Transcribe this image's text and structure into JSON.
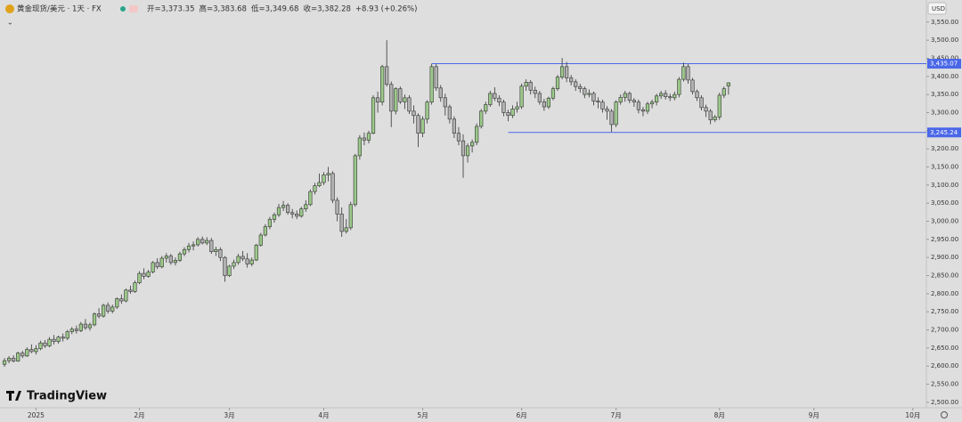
{
  "chart_data": {
    "type": "candlestick",
    "symbol": "黄金现货/美元 · 1天 · FX",
    "header_values": [
      "开=3,373.35",
      "高=3,383.68",
      "低=3,349.68",
      "收=3,382.28",
      "+8.93 (+0.26%)"
    ],
    "currency": "USD",
    "brand": "TradingView",
    "up_color": "#9cc98a",
    "down_color": "#b2b2b2",
    "line_color": "#4a67e8",
    "xlim": [
      -1,
      205
    ],
    "xticks": [
      {
        "value": 7,
        "label": "2025"
      },
      {
        "value": 30,
        "label": "2月"
      },
      {
        "value": 50,
        "label": "3月"
      },
      {
        "value": 71,
        "label": "4月"
      },
      {
        "value": 93,
        "label": "5月"
      },
      {
        "value": 115,
        "label": "6月"
      },
      {
        "value": 136,
        "label": "7月"
      },
      {
        "value": 159,
        "label": "8月"
      },
      {
        "value": 180,
        "label": "9月"
      },
      {
        "value": 202,
        "label": "10月"
      }
    ],
    "ylim": [
      2485,
      3611
    ],
    "yticks": [
      {
        "value": 3550,
        "label": "3,550.00"
      },
      {
        "value": 3500,
        "label": "3,500.00"
      },
      {
        "value": 3450,
        "label": "3,450.00"
      },
      {
        "value": 3400,
        "label": "3,400.00"
      },
      {
        "value": 3350,
        "label": "3,350.00"
      },
      {
        "value": 3300,
        "label": "3,300.00"
      },
      {
        "value": 3250,
        "label": "3,250.00"
      },
      {
        "value": 3200,
        "label": "3,200.00"
      },
      {
        "value": 3150,
        "label": "3,150.00"
      },
      {
        "value": 3100,
        "label": "3,100.00"
      },
      {
        "value": 3050,
        "label": "3,050.00"
      },
      {
        "value": 3000,
        "label": "3,000.00"
      },
      {
        "value": 2950,
        "label": "2,950.00"
      },
      {
        "value": 2900,
        "label": "2,900.00"
      },
      {
        "value": 2850,
        "label": "2,850.00"
      },
      {
        "value": 2800,
        "label": "2,800.00"
      },
      {
        "value": 2750,
        "label": "2,750.00"
      },
      {
        "value": 2700,
        "label": "2,700.00"
      },
      {
        "value": 2650,
        "label": "2,650.00"
      },
      {
        "value": 2600,
        "label": "2,600.00"
      },
      {
        "value": 2550,
        "label": "2,550.00"
      },
      {
        "value": 2500,
        "label": "2,500.00"
      }
    ],
    "hlines": [
      {
        "value": 3435.07,
        "label": "3,435.07"
      },
      {
        "value": 3245.24,
        "label": "3,245.24"
      }
    ],
    "candles": [
      [
        2605,
        2622,
        2598,
        2615
      ],
      [
        2615,
        2628,
        2608,
        2622
      ],
      [
        2622,
        2630,
        2610,
        2614
      ],
      [
        2614,
        2640,
        2612,
        2636
      ],
      [
        2636,
        2642,
        2622,
        2628
      ],
      [
        2628,
        2652,
        2625,
        2646
      ],
      [
        2646,
        2660,
        2636,
        2640
      ],
      [
        2640,
        2658,
        2632,
        2648
      ],
      [
        2648,
        2670,
        2644,
        2664
      ],
      [
        2664,
        2672,
        2650,
        2656
      ],
      [
        2656,
        2680,
        2652,
        2674
      ],
      [
        2674,
        2686,
        2660,
        2668
      ],
      [
        2668,
        2684,
        2662,
        2680
      ],
      [
        2680,
        2690,
        2668,
        2677
      ],
      [
        2677,
        2700,
        2672,
        2695
      ],
      [
        2695,
        2708,
        2688,
        2702
      ],
      [
        2702,
        2712,
        2690,
        2698
      ],
      [
        2698,
        2722,
        2694,
        2716
      ],
      [
        2716,
        2730,
        2700,
        2706
      ],
      [
        2706,
        2720,
        2698,
        2714
      ],
      [
        2714,
        2748,
        2710,
        2744
      ],
      [
        2744,
        2760,
        2732,
        2738
      ],
      [
        2738,
        2772,
        2734,
        2768
      ],
      [
        2768,
        2776,
        2745,
        2752
      ],
      [
        2752,
        2770,
        2746,
        2763
      ],
      [
        2763,
        2790,
        2758,
        2786
      ],
      [
        2786,
        2798,
        2772,
        2780
      ],
      [
        2780,
        2814,
        2776,
        2810
      ],
      [
        2810,
        2822,
        2800,
        2806
      ],
      [
        2806,
        2836,
        2802,
        2830
      ],
      [
        2830,
        2862,
        2826,
        2856
      ],
      [
        2856,
        2870,
        2840,
        2848
      ],
      [
        2848,
        2866,
        2844,
        2860
      ],
      [
        2860,
        2890,
        2856,
        2886
      ],
      [
        2886,
        2898,
        2868,
        2874
      ],
      [
        2874,
        2904,
        2870,
        2898
      ],
      [
        2898,
        2912,
        2886,
        2904
      ],
      [
        2904,
        2910,
        2880,
        2886
      ],
      [
        2886,
        2900,
        2878,
        2892
      ],
      [
        2892,
        2916,
        2888,
        2910
      ],
      [
        2910,
        2928,
        2904,
        2922
      ],
      [
        2922,
        2940,
        2914,
        2932
      ],
      [
        2932,
        2944,
        2920,
        2935
      ],
      [
        2935,
        2956,
        2930,
        2950
      ],
      [
        2950,
        2958,
        2936,
        2940
      ],
      [
        2940,
        2956,
        2934,
        2947
      ],
      [
        2947,
        2954,
        2910,
        2916
      ],
      [
        2916,
        2930,
        2904,
        2922
      ],
      [
        2922,
        2928,
        2890,
        2900
      ],
      [
        2900,
        2904,
        2833,
        2850
      ],
      [
        2850,
        2880,
        2846,
        2876
      ],
      [
        2876,
        2894,
        2868,
        2886
      ],
      [
        2886,
        2910,
        2880,
        2903
      ],
      [
        2903,
        2918,
        2890,
        2896
      ],
      [
        2896,
        2912,
        2872,
        2882
      ],
      [
        2882,
        2900,
        2876,
        2893
      ],
      [
        2893,
        2938,
        2890,
        2934
      ],
      [
        2934,
        2968,
        2930,
        2962
      ],
      [
        2962,
        2992,
        2958,
        2985
      ],
      [
        2985,
        3012,
        2978,
        3005
      ],
      [
        3005,
        3024,
        2996,
        3018
      ],
      [
        3018,
        3048,
        3012,
        3038
      ],
      [
        3038,
        3056,
        3028,
        3044
      ],
      [
        3044,
        3050,
        3018,
        3024
      ],
      [
        3024,
        3034,
        3008,
        3020
      ],
      [
        3020,
        3030,
        3006,
        3014
      ],
      [
        3014,
        3040,
        3010,
        3034
      ],
      [
        3034,
        3058,
        3026,
        3046
      ],
      [
        3046,
        3088,
        3042,
        3082
      ],
      [
        3082,
        3106,
        3074,
        3098
      ],
      [
        3098,
        3132,
        3094,
        3107
      ],
      [
        3107,
        3136,
        3100,
        3128
      ],
      [
        3128,
        3150,
        3110,
        3132
      ],
      [
        3132,
        3138,
        3050,
        3058
      ],
      [
        3058,
        3066,
        3000,
        3020
      ],
      [
        3020,
        3038,
        2957,
        2972
      ],
      [
        2972,
        3006,
        2966,
        2982
      ],
      [
        2982,
        3054,
        2976,
        3046
      ],
      [
        3046,
        3186,
        3040,
        3181
      ],
      [
        3181,
        3238,
        3170,
        3230
      ],
      [
        3230,
        3245,
        3210,
        3224
      ],
      [
        3224,
        3250,
        3215,
        3243
      ],
      [
        3243,
        3348,
        3240,
        3341
      ],
      [
        3341,
        3358,
        3300,
        3329
      ],
      [
        3329,
        3432,
        3320,
        3427
      ],
      [
        3427,
        3500,
        3372,
        3378
      ],
      [
        3378,
        3386,
        3260,
        3304
      ],
      [
        3304,
        3370,
        3295,
        3366
      ],
      [
        3366,
        3372,
        3324,
        3330
      ],
      [
        3330,
        3350,
        3310,
        3341
      ],
      [
        3341,
        3348,
        3296,
        3304
      ],
      [
        3304,
        3320,
        3270,
        3292
      ],
      [
        3292,
        3298,
        3205,
        3243
      ],
      [
        3243,
        3290,
        3232,
        3282
      ],
      [
        3282,
        3334,
        3270,
        3329
      ],
      [
        3329,
        3435,
        3322,
        3427
      ],
      [
        3427,
        3434,
        3360,
        3368
      ],
      [
        3368,
        3376,
        3330,
        3341
      ],
      [
        3341,
        3352,
        3292,
        3316
      ],
      [
        3316,
        3322,
        3270,
        3282
      ],
      [
        3282,
        3290,
        3230,
        3243
      ],
      [
        3243,
        3260,
        3210,
        3222
      ],
      [
        3222,
        3240,
        3120,
        3181
      ],
      [
        3181,
        3215,
        3162,
        3208
      ],
      [
        3208,
        3226,
        3190,
        3218
      ],
      [
        3218,
        3270,
        3210,
        3262
      ],
      [
        3262,
        3310,
        3256,
        3304
      ],
      [
        3304,
        3330,
        3296,
        3322
      ],
      [
        3322,
        3360,
        3316,
        3353
      ],
      [
        3353,
        3370,
        3332,
        3340
      ],
      [
        3340,
        3348,
        3318,
        3329
      ],
      [
        3329,
        3336,
        3290,
        3300
      ],
      [
        3300,
        3308,
        3276,
        3292
      ],
      [
        3292,
        3320,
        3285,
        3310
      ],
      [
        3310,
        3330,
        3300,
        3316
      ],
      [
        3316,
        3380,
        3310,
        3373
      ],
      [
        3373,
        3392,
        3360,
        3384
      ],
      [
        3384,
        3390,
        3350,
        3362
      ],
      [
        3362,
        3372,
        3340,
        3353
      ],
      [
        3353,
        3360,
        3322,
        3330
      ],
      [
        3330,
        3338,
        3305,
        3316
      ],
      [
        3316,
        3344,
        3310,
        3340
      ],
      [
        3340,
        3372,
        3334,
        3366
      ],
      [
        3366,
        3404,
        3360,
        3398
      ],
      [
        3398,
        3451,
        3392,
        3427
      ],
      [
        3427,
        3440,
        3384,
        3396
      ],
      [
        3396,
        3404,
        3375,
        3385
      ],
      [
        3385,
        3392,
        3360,
        3372
      ],
      [
        3372,
        3380,
        3355,
        3366
      ],
      [
        3366,
        3372,
        3340,
        3350
      ],
      [
        3350,
        3364,
        3342,
        3353
      ],
      [
        3353,
        3358,
        3320,
        3332
      ],
      [
        3332,
        3342,
        3312,
        3329
      ],
      [
        3329,
        3336,
        3300,
        3310
      ],
      [
        3310,
        3318,
        3280,
        3304
      ],
      [
        3304,
        3310,
        3247,
        3267
      ],
      [
        3267,
        3334,
        3260,
        3329
      ],
      [
        3329,
        3350,
        3322,
        3342
      ],
      [
        3342,
        3360,
        3330,
        3353
      ],
      [
        3353,
        3358,
        3326,
        3334
      ],
      [
        3334,
        3340,
        3316,
        3329
      ],
      [
        3329,
        3336,
        3298,
        3308
      ],
      [
        3308,
        3316,
        3290,
        3304
      ],
      [
        3304,
        3330,
        3296,
        3324
      ],
      [
        3324,
        3336,
        3312,
        3329
      ],
      [
        3329,
        3352,
        3320,
        3346
      ],
      [
        3346,
        3360,
        3338,
        3353
      ],
      [
        3353,
        3362,
        3336,
        3344
      ],
      [
        3344,
        3352,
        3332,
        3341
      ],
      [
        3341,
        3358,
        3334,
        3350
      ],
      [
        3350,
        3398,
        3342,
        3392
      ],
      [
        3392,
        3438,
        3386,
        3427
      ],
      [
        3427,
        3434,
        3380,
        3390
      ],
      [
        3390,
        3396,
        3350,
        3358
      ],
      [
        3358,
        3364,
        3332,
        3341
      ],
      [
        3341,
        3348,
        3306,
        3314
      ],
      [
        3314,
        3322,
        3288,
        3304
      ],
      [
        3304,
        3310,
        3268,
        3280
      ],
      [
        3280,
        3294,
        3274,
        3288
      ],
      [
        3288,
        3355,
        3280,
        3348
      ],
      [
        3348,
        3372,
        3340,
        3366
      ],
      [
        3373.35,
        3383.68,
        3349.68,
        3382.28
      ]
    ]
  }
}
